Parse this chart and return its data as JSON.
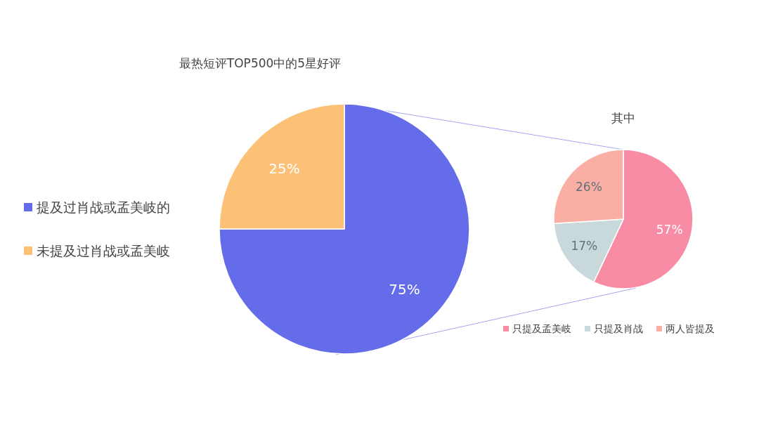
{
  "chart_data": [
    {
      "type": "pie",
      "title": "最热短评TOP500中的5星好评",
      "categories": [
        "提及过肖战或孟美岐的",
        "未提及过肖战或孟美岐"
      ],
      "values": [
        75,
        25
      ],
      "colors": [
        "#646cea",
        "#fdc077"
      ],
      "value_labels": [
        "75%",
        "25%"
      ],
      "legend": "left"
    },
    {
      "type": "pie",
      "title": "其中",
      "categories": [
        "只提及孟美岐",
        "只提及肖战",
        "两人皆提及"
      ],
      "values": [
        57,
        17,
        26
      ],
      "colors": [
        "#f98ca5",
        "#c9d8db",
        "#fbaea4"
      ],
      "value_labels": [
        "57%",
        "17%",
        "26%"
      ],
      "legend": "bottom"
    }
  ]
}
